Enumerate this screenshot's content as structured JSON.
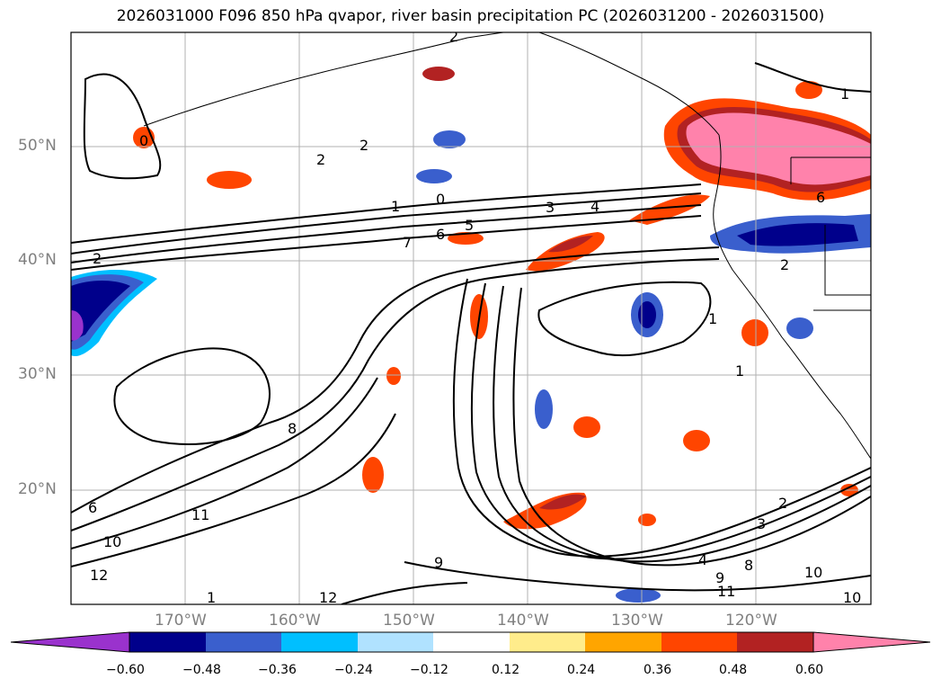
{
  "title": "2026031000 F096 850 hPa qvapor, river basin precipitation PC (2026031200 - 2026031500)",
  "lat_labels": [
    "50°N",
    "40°N",
    "30°N",
    "20°N"
  ],
  "lon_labels": [
    "170°W",
    "160°W",
    "150°W",
    "140°W",
    "130°W",
    "120°W"
  ],
  "colorbar": {
    "tick_labels": [
      "−0.60",
      "−0.48",
      "−0.36",
      "−0.24",
      "−0.12",
      "0.12",
      "0.24",
      "0.36",
      "0.48",
      "0.60"
    ],
    "colors": [
      "#9a32cd",
      "#00008b",
      "#3a5fcd",
      "#00bfff",
      "#b0e2ff",
      "#ffffff",
      "#ffec8b",
      "#ffa500",
      "#ff4500",
      "#b22222",
      "#ff82ab"
    ]
  },
  "contour_labels": [
    "1",
    "0",
    "2",
    "2",
    "1",
    "0",
    "3",
    "4",
    "5",
    "6",
    "7",
    "2",
    "1",
    "2",
    "1",
    "8",
    "11",
    "10",
    "12",
    "9",
    "12",
    "6",
    "2",
    "3",
    "4",
    "9",
    "8",
    "11",
    "10",
    "10",
    "2",
    "6",
    "1"
  ]
}
